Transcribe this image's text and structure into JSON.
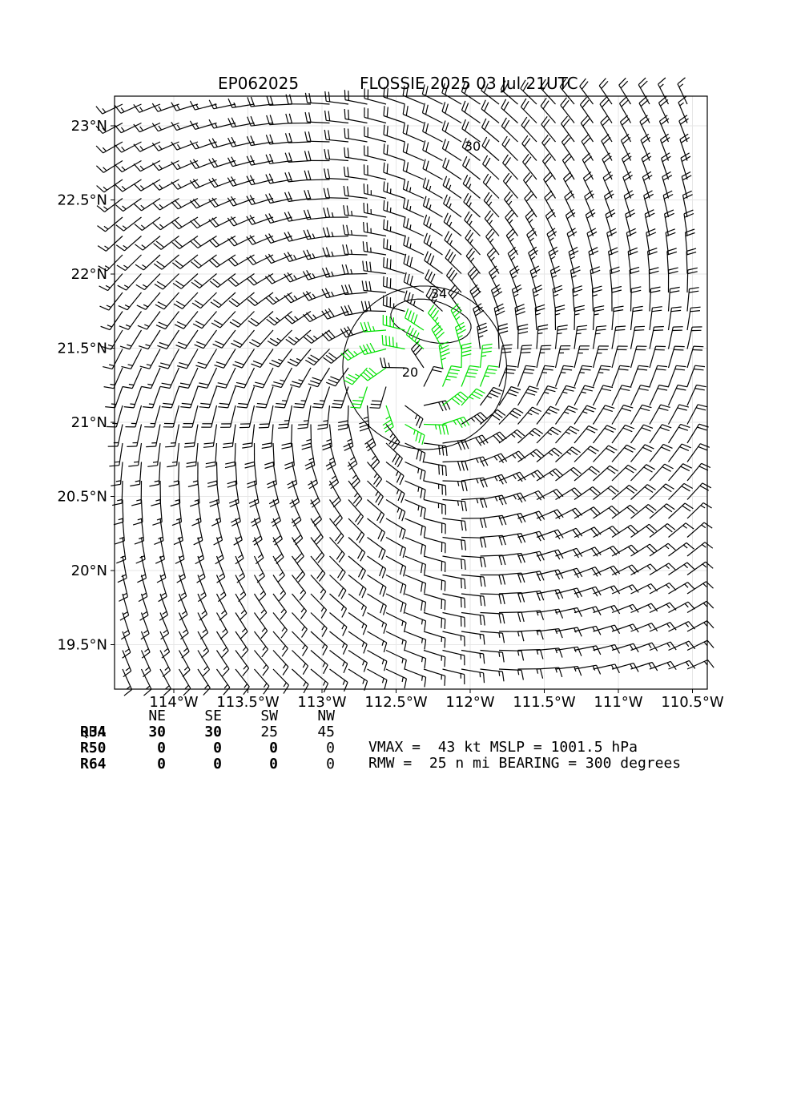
{
  "header": {
    "storm_id": "EP062025",
    "storm_title": "FLOSSIE 2025 03 Jul 21UTC"
  },
  "chart_data": {
    "type": "wind barb map",
    "x_ticks": [
      "114°W",
      "113.5°W",
      "113°W",
      "112.5°W",
      "112°W",
      "111.5°W",
      "111°W",
      "110.5°W"
    ],
    "x_tick_values": [
      -114.0,
      -113.5,
      -113.0,
      -112.5,
      -112.0,
      -111.5,
      -111.0,
      -110.5
    ],
    "y_ticks": [
      "23°N",
      "22.5°N",
      "22°N",
      "21.5°N",
      "21°N",
      "20.5°N",
      "20°N",
      "19.5°N"
    ],
    "y_tick_values": [
      23.0,
      22.5,
      22.0,
      21.5,
      21.0,
      20.5,
      20.0,
      19.5
    ],
    "xlim": [
      -114.4,
      -110.4
    ],
    "ylim": [
      19.2,
      23.2
    ],
    "grid": true,
    "center": {
      "lon": -112.4,
      "lat": 21.25
    },
    "contour_labels": [
      "30",
      "34",
      "20"
    ],
    "contours_kt": [
      20,
      30,
      34
    ],
    "barb_colors": {
      "below_34": "#000000",
      "34_to_50": "#00e000",
      "above_50": "#f0b020"
    },
    "rmw_nmi": 25,
    "bearing_deg": 300
  },
  "radii_table": {
    "header": [
      "QUA",
      "NE",
      "SE",
      "SW",
      "NW"
    ],
    "rows": [
      {
        "label": "R34",
        "values": [
          "30",
          "30",
          "25",
          "45"
        ]
      },
      {
        "label": "R50",
        "values": [
          "0",
          "0",
          "0",
          "0"
        ]
      },
      {
        "label": "R64",
        "values": [
          "0",
          "0",
          "0",
          "0"
        ]
      }
    ]
  },
  "stats": {
    "line1": "VMAX =  43 kt MSLP = 1001.5 hPa",
    "line2": "RMW =  25 n mi BEARING = 300 degrees"
  }
}
